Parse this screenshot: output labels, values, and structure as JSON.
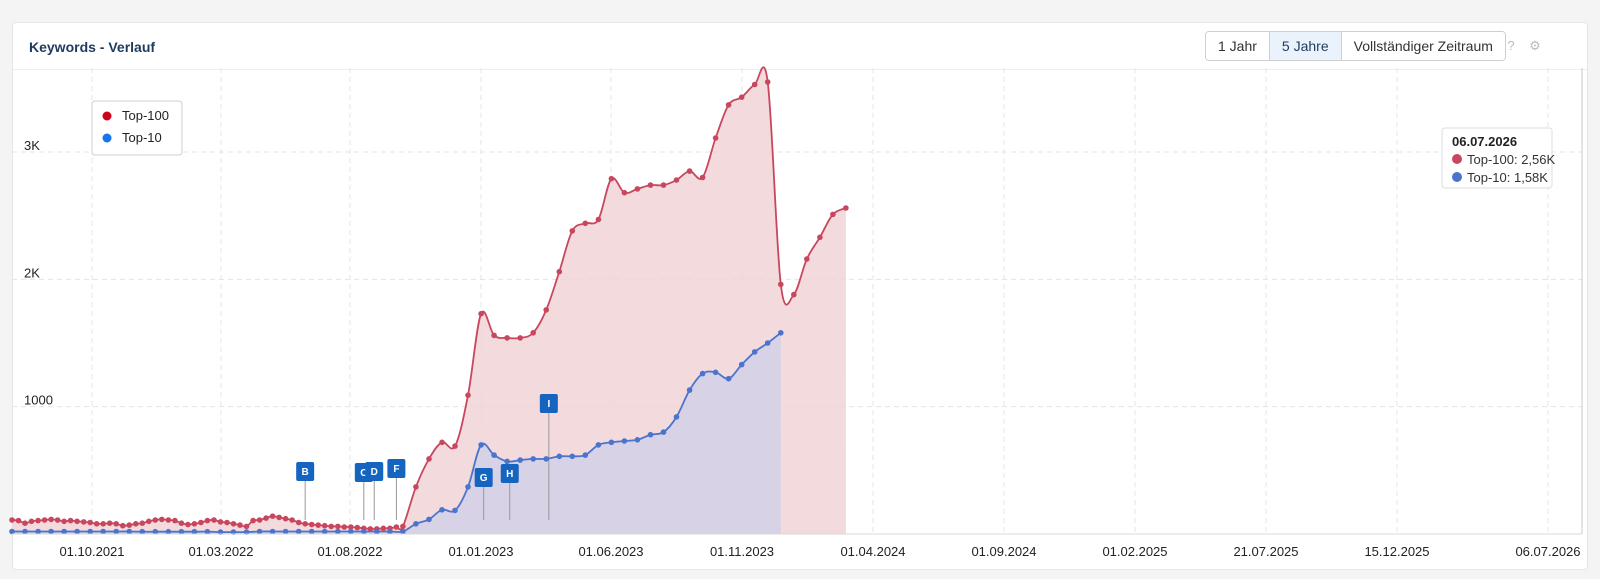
{
  "header": {
    "title": "Keywords - Verlauf",
    "ranges": [
      {
        "label": "1 Jahr",
        "active": false
      },
      {
        "label": "5 Jahre",
        "active": true
      },
      {
        "label": "Vollständiger Zeitraum",
        "active": false
      }
    ],
    "help_icon": "question-icon",
    "settings_icon": "gear-icon"
  },
  "tooltip": {
    "date": "06.07.2026",
    "line1": "Top-100: 2,56K",
    "line2": "Top-10: 1,58K"
  },
  "chart_data": {
    "type": "area",
    "x_labels": [
      "01.10.2021",
      "01.03.2022",
      "01.08.2022",
      "01.01.2023",
      "01.06.2023",
      "01.11.2023",
      "01.04.2024",
      "01.09.2024",
      "01.02.2025",
      "21.07.2025",
      "15.12.2025",
      "06.07.2026"
    ],
    "y_ticks": [
      {
        "value": 1000,
        "label": "1000"
      },
      {
        "value": 2000,
        "label": "2K"
      },
      {
        "value": 3000,
        "label": "3K"
      }
    ],
    "ylim": [
      0,
      3600
    ],
    "grid": true,
    "legend": {
      "placement": "top-left",
      "entries": [
        "Top-100",
        "Top-10"
      ]
    },
    "colors": {
      "top100": "#c9475e",
      "top100_fill": "#f0d3d7",
      "top10": "#4b74cc",
      "top10_fill": "#d2d0e8",
      "legend_top100": "#d0021b",
      "legend_top10": "#1a73e8",
      "flag": "#1565c0"
    },
    "series": [
      {
        "name": "Top-100",
        "points": [
          [
            0,
            110
          ],
          [
            0.25,
            105
          ],
          [
            0.5,
            85
          ],
          [
            0.75,
            100
          ],
          [
            1,
            105
          ],
          [
            1.25,
            110
          ],
          [
            1.5,
            115
          ],
          [
            1.75,
            110
          ],
          [
            2,
            100
          ],
          [
            2.25,
            105
          ],
          [
            2.5,
            100
          ],
          [
            2.75,
            95
          ],
          [
            3,
            90
          ],
          [
            3.25,
            80
          ],
          [
            3.5,
            80
          ],
          [
            3.75,
            85
          ],
          [
            4,
            80
          ],
          [
            4.25,
            65
          ],
          [
            4.5,
            70
          ],
          [
            4.75,
            80
          ],
          [
            5,
            85
          ],
          [
            5.25,
            100
          ],
          [
            5.5,
            110
          ],
          [
            5.75,
            115
          ],
          [
            6,
            110
          ],
          [
            6.25,
            105
          ],
          [
            6.5,
            85
          ],
          [
            6.75,
            75
          ],
          [
            7,
            80
          ],
          [
            7.25,
            90
          ],
          [
            7.5,
            105
          ],
          [
            7.75,
            110
          ],
          [
            8,
            95
          ],
          [
            8.25,
            90
          ],
          [
            8.5,
            80
          ],
          [
            8.75,
            70
          ],
          [
            9,
            60
          ],
          [
            9.25,
            105
          ],
          [
            9.5,
            110
          ],
          [
            9.75,
            125
          ],
          [
            10,
            140
          ],
          [
            10.25,
            130
          ],
          [
            10.5,
            120
          ],
          [
            10.75,
            110
          ],
          [
            11,
            90
          ],
          [
            11.25,
            80
          ],
          [
            11.5,
            75
          ],
          [
            11.75,
            70
          ],
          [
            12,
            65
          ],
          [
            12.25,
            60
          ],
          [
            12.5,
            60
          ],
          [
            12.75,
            55
          ],
          [
            13,
            55
          ],
          [
            13.25,
            50
          ],
          [
            13.5,
            45
          ],
          [
            13.75,
            40
          ],
          [
            14,
            40
          ],
          [
            14.25,
            45
          ],
          [
            14.5,
            45
          ],
          [
            14.75,
            55
          ],
          [
            15,
            60
          ],
          [
            15.5,
            370
          ],
          [
            16,
            590
          ],
          [
            16.5,
            720
          ],
          [
            17,
            690
          ],
          [
            17.5,
            1090
          ],
          [
            18,
            1730
          ],
          [
            18.5,
            1560
          ],
          [
            19,
            1540
          ],
          [
            19.5,
            1540
          ],
          [
            20,
            1580
          ],
          [
            20.5,
            1760
          ],
          [
            21,
            2060
          ],
          [
            21.5,
            2380
          ],
          [
            22,
            2440
          ],
          [
            22.5,
            2470
          ],
          [
            23,
            2790
          ],
          [
            23.5,
            2680
          ],
          [
            24,
            2710
          ],
          [
            24.5,
            2740
          ],
          [
            25,
            2740
          ],
          [
            25.5,
            2780
          ],
          [
            26,
            2850
          ],
          [
            26.5,
            2800
          ],
          [
            27,
            3110
          ],
          [
            27.5,
            3370
          ],
          [
            28,
            3430
          ],
          [
            28.5,
            3530
          ],
          [
            29,
            3550
          ],
          [
            29.5,
            1960
          ],
          [
            30,
            1880
          ],
          [
            30.5,
            2160
          ],
          [
            31,
            2330
          ],
          [
            31.5,
            2510
          ],
          [
            32,
            2560
          ]
        ]
      },
      {
        "name": "Top-10",
        "points": [
          [
            0,
            20
          ],
          [
            0.5,
            20
          ],
          [
            1,
            20
          ],
          [
            1.5,
            20
          ],
          [
            2,
            20
          ],
          [
            2.5,
            20
          ],
          [
            3,
            20
          ],
          [
            3.5,
            20
          ],
          [
            4,
            20
          ],
          [
            4.5,
            20
          ],
          [
            5,
            18
          ],
          [
            5.5,
            18
          ],
          [
            6,
            18
          ],
          [
            6.5,
            18
          ],
          [
            7,
            18
          ],
          [
            7.5,
            18
          ],
          [
            8,
            15
          ],
          [
            8.5,
            15
          ],
          [
            9,
            15
          ],
          [
            9.5,
            20
          ],
          [
            10,
            20
          ],
          [
            10.5,
            20
          ],
          [
            11,
            20
          ],
          [
            11.5,
            20
          ],
          [
            12,
            20
          ],
          [
            12.5,
            20
          ],
          [
            13,
            20
          ],
          [
            13.5,
            20
          ],
          [
            14,
            20
          ],
          [
            14.5,
            20
          ],
          [
            15,
            20
          ],
          [
            15.5,
            80
          ],
          [
            16,
            115
          ],
          [
            16.5,
            190
          ],
          [
            17,
            185
          ],
          [
            17.5,
            370
          ],
          [
            18,
            700
          ],
          [
            18.5,
            620
          ],
          [
            19,
            570
          ],
          [
            19.5,
            580
          ],
          [
            20,
            590
          ],
          [
            20.5,
            590
          ],
          [
            21,
            610
          ],
          [
            21.5,
            610
          ],
          [
            22,
            620
          ],
          [
            22.5,
            700
          ],
          [
            23,
            720
          ],
          [
            23.5,
            730
          ],
          [
            24,
            740
          ],
          [
            24.5,
            780
          ],
          [
            25,
            800
          ],
          [
            25.5,
            920
          ],
          [
            26,
            1130
          ],
          [
            26.5,
            1260
          ],
          [
            27,
            1270
          ],
          [
            27.5,
            1220
          ],
          [
            28,
            1330
          ],
          [
            28.5,
            1430
          ],
          [
            29,
            1500
          ],
          [
            29.5,
            1580
          ]
        ]
      }
    ],
    "events": [
      {
        "label": "B",
        "x": 11.25
      },
      {
        "label": "C",
        "x": 13.5
      },
      {
        "label": "D",
        "x": 13.9
      },
      {
        "label": "F",
        "x": 14.75
      },
      {
        "label": "G",
        "x": 18.1
      },
      {
        "label": "H",
        "x": 19.1
      },
      {
        "label": "I",
        "x": 20.6
      }
    ]
  }
}
